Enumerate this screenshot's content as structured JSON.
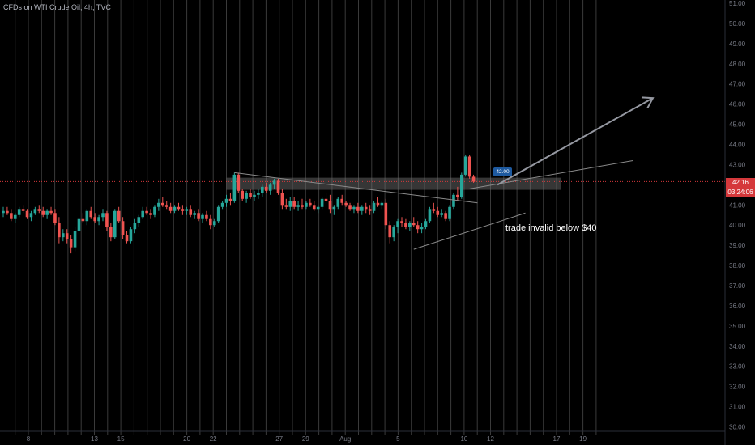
{
  "header": {
    "symbol_title": "CFDs on WTI Crude Oil, 4h, TVC"
  },
  "annotation": {
    "text": "trade invalid below $40",
    "price_tag": "42.00"
  },
  "last_price": {
    "price": "42.16",
    "countdown": "03:24:06"
  },
  "colors": {
    "background": "#000000",
    "up_candle": "#26a69a",
    "down_candle": "#ef5350",
    "last_price": "#d5383b",
    "tag": "#1e5aa0"
  },
  "chart_data": {
    "type": "candlestick",
    "title": "",
    "xlabel": "",
    "ylabel": "",
    "ylim": [
      29.5,
      51.2
    ],
    "grid": "vertical lines only",
    "y_ticks": [
      "51.00",
      "50.00",
      "49.00",
      "48.00",
      "47.00",
      "46.00",
      "45.00",
      "44.00",
      "43.00",
      "42.00",
      "41.00",
      "40.00",
      "39.00",
      "38.00",
      "37.00",
      "36.00",
      "35.00",
      "34.00",
      "33.00",
      "32.00",
      "31.00",
      "30.00"
    ],
    "x_ticks": [
      {
        "label": "8",
        "day": 8
      },
      {
        "label": "13",
        "day": 13
      },
      {
        "label": "15",
        "day": 15
      },
      {
        "label": "20",
        "day": 20
      },
      {
        "label": "22",
        "day": 22
      },
      {
        "label": "27",
        "day": 27
      },
      {
        "label": "29",
        "day": 29
      },
      {
        "label": "Aug",
        "day": 32
      },
      {
        "label": "5",
        "day": 36
      },
      {
        "label": "10",
        "day": 41
      },
      {
        "label": "12",
        "day": 43
      },
      {
        "label": "17",
        "day": 48
      },
      {
        "label": "19",
        "day": 50
      }
    ],
    "candles": [
      [
        40.6,
        40.9,
        40.4,
        40.7
      ],
      [
        40.7,
        40.9,
        40.5,
        40.6
      ],
      [
        40.6,
        40.8,
        40.2,
        40.3
      ],
      [
        40.3,
        40.6,
        40.1,
        40.5
      ],
      [
        40.5,
        40.9,
        40.4,
        40.8
      ],
      [
        40.8,
        41.0,
        40.6,
        40.7
      ],
      [
        40.7,
        40.8,
        40.3,
        40.4
      ],
      [
        40.4,
        40.7,
        40.2,
        40.6
      ],
      [
        40.6,
        40.9,
        40.5,
        40.8
      ],
      [
        40.8,
        41.0,
        40.6,
        40.7
      ],
      [
        40.7,
        40.9,
        40.4,
        40.5
      ],
      [
        40.5,
        40.8,
        40.3,
        40.7
      ],
      [
        40.7,
        40.9,
        40.5,
        40.6
      ],
      [
        40.6,
        40.8,
        40.0,
        40.1
      ],
      [
        40.1,
        40.4,
        39.1,
        39.4
      ],
      [
        39.4,
        39.8,
        39.2,
        39.6
      ],
      [
        39.6,
        39.8,
        39.1,
        39.3
      ],
      [
        39.3,
        39.5,
        38.6,
        38.9
      ],
      [
        38.9,
        39.9,
        38.7,
        39.7
      ],
      [
        39.7,
        40.4,
        39.5,
        40.3
      ],
      [
        40.3,
        40.6,
        40.1,
        40.2
      ],
      [
        40.2,
        40.8,
        40.0,
        40.7
      ],
      [
        40.7,
        40.9,
        40.3,
        40.4
      ],
      [
        40.4,
        40.6,
        40.1,
        40.2
      ],
      [
        40.2,
        40.5,
        40.0,
        40.4
      ],
      [
        40.4,
        40.8,
        40.2,
        40.6
      ],
      [
        40.6,
        40.7,
        39.7,
        39.9
      ],
      [
        39.9,
        40.1,
        39.2,
        39.4
      ],
      [
        39.4,
        40.8,
        39.3,
        40.7
      ],
      [
        40.7,
        40.9,
        40.1,
        40.2
      ],
      [
        40.2,
        40.4,
        39.3,
        39.5
      ],
      [
        39.5,
        39.7,
        39.1,
        39.2
      ],
      [
        39.2,
        39.9,
        39.1,
        39.8
      ],
      [
        39.8,
        40.3,
        39.6,
        40.1
      ],
      [
        40.1,
        40.5,
        39.9,
        40.4
      ],
      [
        40.4,
        40.9,
        40.3,
        40.7
      ],
      [
        40.7,
        40.9,
        40.5,
        40.6
      ],
      [
        40.6,
        40.8,
        40.3,
        40.5
      ],
      [
        40.5,
        41.0,
        40.4,
        40.9
      ],
      [
        40.9,
        41.3,
        40.7,
        41.1
      ],
      [
        41.1,
        41.4,
        40.9,
        41.0
      ],
      [
        41.0,
        41.2,
        40.8,
        40.9
      ],
      [
        40.9,
        41.1,
        40.6,
        40.7
      ],
      [
        40.7,
        41.0,
        40.6,
        40.9
      ],
      [
        40.9,
        41.1,
        40.7,
        40.8
      ],
      [
        40.8,
        41.0,
        40.5,
        40.7
      ],
      [
        40.7,
        40.9,
        40.5,
        40.8
      ],
      [
        40.8,
        41.0,
        40.4,
        40.5
      ],
      [
        40.5,
        40.7,
        40.3,
        40.6
      ],
      [
        40.6,
        40.8,
        40.2,
        40.3
      ],
      [
        40.3,
        40.6,
        40.1,
        40.5
      ],
      [
        40.5,
        40.7,
        40.2,
        40.3
      ],
      [
        40.3,
        40.5,
        39.8,
        40.0
      ],
      [
        40.0,
        40.3,
        39.9,
        40.2
      ],
      [
        40.2,
        41.0,
        40.1,
        40.9
      ],
      [
        40.9,
        41.2,
        40.8,
        41.1
      ],
      [
        41.1,
        41.5,
        40.9,
        41.3
      ],
      [
        41.3,
        41.6,
        41.0,
        41.2
      ],
      [
        41.2,
        42.6,
        41.1,
        42.5
      ],
      [
        42.5,
        42.6,
        41.6,
        41.7
      ],
      [
        41.7,
        41.8,
        41.2,
        41.3
      ],
      [
        41.3,
        41.7,
        41.1,
        41.6
      ],
      [
        41.6,
        41.8,
        41.3,
        41.4
      ],
      [
        41.4,
        41.7,
        41.2,
        41.5
      ],
      [
        41.5,
        41.8,
        41.3,
        41.6
      ],
      [
        41.6,
        42.0,
        41.4,
        41.9
      ],
      [
        41.9,
        42.1,
        41.6,
        41.7
      ],
      [
        41.7,
        42.1,
        41.5,
        42.0
      ],
      [
        42.0,
        42.3,
        41.8,
        42.2
      ],
      [
        42.2,
        42.3,
        41.5,
        41.6
      ],
      [
        41.6,
        41.8,
        40.8,
        41.0
      ],
      [
        41.0,
        41.3,
        40.8,
        40.9
      ],
      [
        40.9,
        41.4,
        40.7,
        41.2
      ],
      [
        41.2,
        41.4,
        40.8,
        40.9
      ],
      [
        40.9,
        41.2,
        40.7,
        41.0
      ],
      [
        41.0,
        41.3,
        40.8,
        40.9
      ],
      [
        40.9,
        41.2,
        40.8,
        41.1
      ],
      [
        41.1,
        41.3,
        40.9,
        41.0
      ],
      [
        41.0,
        41.2,
        40.7,
        40.8
      ],
      [
        40.8,
        41.0,
        40.6,
        40.9
      ],
      [
        40.9,
        41.4,
        40.8,
        41.3
      ],
      [
        41.3,
        41.6,
        41.1,
        41.2
      ],
      [
        41.2,
        41.5,
        40.6,
        40.8
      ],
      [
        40.8,
        41.0,
        40.5,
        40.9
      ],
      [
        40.9,
        41.4,
        40.8,
        41.3
      ],
      [
        41.3,
        41.5,
        41.0,
        41.1
      ],
      [
        41.1,
        41.2,
        40.9,
        41.0
      ],
      [
        41.0,
        41.1,
        40.7,
        40.8
      ],
      [
        40.8,
        41.0,
        40.6,
        40.9
      ],
      [
        40.9,
        41.1,
        40.6,
        40.7
      ],
      [
        40.7,
        41.0,
        40.5,
        40.9
      ],
      [
        40.9,
        41.1,
        40.6,
        40.8
      ],
      [
        40.8,
        41.0,
        40.5,
        40.7
      ],
      [
        40.7,
        41.2,
        40.6,
        41.1
      ],
      [
        41.1,
        41.4,
        40.9,
        41.0
      ],
      [
        41.0,
        41.2,
        40.8,
        41.1
      ],
      [
        41.1,
        41.3,
        39.8,
        40.0
      ],
      [
        40.0,
        40.2,
        39.1,
        39.4
      ],
      [
        39.4,
        40.0,
        39.2,
        39.9
      ],
      [
        39.9,
        40.3,
        39.6,
        40.2
      ],
      [
        40.2,
        40.4,
        39.9,
        40.1
      ],
      [
        40.1,
        40.3,
        39.8,
        39.9
      ],
      [
        39.9,
        40.2,
        39.7,
        40.1
      ],
      [
        40.1,
        40.4,
        39.9,
        40.0
      ],
      [
        40.0,
        40.2,
        39.6,
        39.8
      ],
      [
        39.8,
        40.1,
        39.6,
        39.9
      ],
      [
        39.9,
        40.3,
        39.8,
        40.2
      ],
      [
        40.2,
        40.9,
        40.1,
        40.8
      ],
      [
        40.8,
        41.1,
        40.6,
        40.7
      ],
      [
        40.7,
        40.9,
        40.4,
        40.5
      ],
      [
        40.5,
        40.8,
        40.4,
        40.6
      ],
      [
        40.6,
        40.7,
        40.2,
        40.3
      ],
      [
        40.3,
        41.0,
        40.2,
        40.9
      ],
      [
        40.9,
        41.6,
        40.8,
        41.5
      ],
      [
        41.5,
        41.9,
        41.2,
        41.4
      ],
      [
        41.4,
        42.6,
        41.3,
        42.5
      ],
      [
        42.5,
        43.5,
        42.4,
        43.4
      ],
      [
        43.4,
        43.5,
        42.3,
        42.4
      ],
      [
        42.4,
        42.5,
        42.1,
        42.16
      ]
    ],
    "horizontal_line": 42.16,
    "zone": {
      "top": 42.35,
      "bottom": 41.75
    },
    "lines": [
      {
        "name": "descending-resistance",
        "from": [
          58,
          42.6
        ],
        "to": [
          119,
          41.1
        ]
      },
      {
        "name": "ascending-support",
        "from": [
          103,
          38.8
        ],
        "to": [
          131,
          40.6
        ]
      },
      {
        "name": "ascending-channel-upper",
        "from": [
          117,
          41.8
        ],
        "to": [
          158,
          43.2
        ]
      },
      {
        "name": "projection-arrow",
        "from": [
          124,
          42.0
        ],
        "to": [
          163,
          46.3
        ]
      }
    ]
  }
}
